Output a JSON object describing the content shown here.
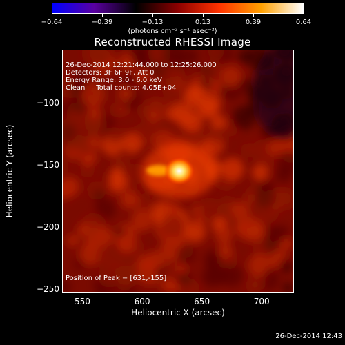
{
  "chart_data": {
    "type": "heatmap",
    "title": "Reconstructed RHESSI Image",
    "xlabel": "Heliocentric X (arcsec)",
    "ylabel": "Heliocentric Y (arcsec)",
    "xlim": [
      533,
      727
    ],
    "ylim": [
      -253,
      -57
    ],
    "x_ticks": [
      "550",
      "600",
      "650",
      "700"
    ],
    "y_ticks": [
      "−100",
      "−150",
      "−200",
      "−250"
    ],
    "colorbar": {
      "ticks": [
        "−0.64",
        "−0.39",
        "−0.13",
        "0.13",
        "0.39",
        "0.64"
      ],
      "range": [
        -0.64,
        0.64
      ],
      "unit_label": "(photons cm⁻² s⁻¹ asec⁻²)",
      "colormap": [
        "#0000ff",
        "#5a00a0",
        "#000000",
        "#8b0000",
        "#ff3300",
        "#ffa000",
        "#ffffff"
      ]
    },
    "peak": {
      "x": 631,
      "y": -155,
      "value": 0.64
    },
    "annotations": [
      "26-Dec-2014 12:21:44.000 to 12:25:26.000",
      "Detectors: 3F 6F 9F, Att 0",
      "Energy Range: 3.0 - 6.0 keV",
      "Clean     Total counts: 4.05E+04"
    ],
    "peak_label": "Position of Peak = [631,-155]"
  },
  "timestamp": "26-Dec-2014 12:43"
}
